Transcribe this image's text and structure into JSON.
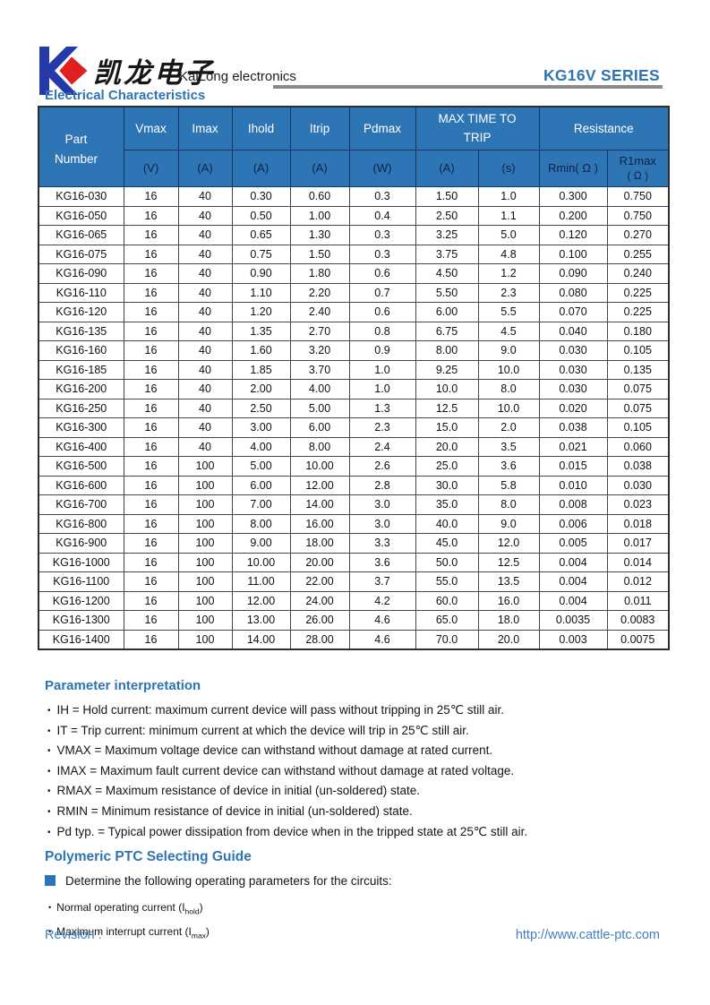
{
  "header": {
    "logo_chinese": "凯龙电子",
    "company": "KaiLong electronics",
    "series": "KG16V SERIES"
  },
  "electrical_section_title": "Electrical Characteristics",
  "table": {
    "header": {
      "part_number": "Part Number",
      "vmax": "Vmax",
      "imax": "Imax",
      "ihold": "Ihold",
      "itrip": "Itrip",
      "pdmax": "Pdmax",
      "max_time_to_trip": "MAX TIME TO TRIP",
      "resistance": "Resistance",
      "units": [
        "(V)",
        "(A)",
        "(A)",
        "(A)",
        "(W)"
      ],
      "trip_units": [
        "(A)",
        "(s)"
      ],
      "rmin": "Rmin( Ω )",
      "r1max": "R1max",
      "r1max_unit": "( Ω )"
    },
    "rows": [
      [
        "KG16-030",
        "16",
        "40",
        "0.30",
        "0.60",
        "0.3",
        "1.50",
        "1.0",
        "0.300",
        "0.750"
      ],
      [
        "KG16-050",
        "16",
        "40",
        "0.50",
        "1.00",
        "0.4",
        "2.50",
        "1.1",
        "0.200",
        "0.750"
      ],
      [
        "KG16-065",
        "16",
        "40",
        "0.65",
        "1.30",
        "0.3",
        "3.25",
        "5.0",
        "0.120",
        "0.270"
      ],
      [
        "KG16-075",
        "16",
        "40",
        "0.75",
        "1.50",
        "0.3",
        "3.75",
        "4.8",
        "0.100",
        "0.255"
      ],
      [
        "KG16-090",
        "16",
        "40",
        "0.90",
        "1.80",
        "0.6",
        "4.50",
        "1.2",
        "0.090",
        "0.240"
      ],
      [
        "KG16-110",
        "16",
        "40",
        "1.10",
        "2.20",
        "0.7",
        "5.50",
        "2.3",
        "0.080",
        "0.225"
      ],
      [
        "KG16-120",
        "16",
        "40",
        "1.20",
        "2.40",
        "0.6",
        "6.00",
        "5.5",
        "0.070",
        "0.225"
      ],
      [
        "KG16-135",
        "16",
        "40",
        "1.35",
        "2.70",
        "0.8",
        "6.75",
        "4.5",
        "0.040",
        "0.180"
      ],
      [
        "KG16-160",
        "16",
        "40",
        "1.60",
        "3.20",
        "0.9",
        "8.00",
        "9.0",
        "0.030",
        "0.105"
      ],
      [
        "KG16-185",
        "16",
        "40",
        "1.85",
        "3.70",
        "1.0",
        "9.25",
        "10.0",
        "0.030",
        "0.135"
      ],
      [
        "KG16-200",
        "16",
        "40",
        "2.00",
        "4.00",
        "1.0",
        "10.0",
        "8.0",
        "0.030",
        "0.075"
      ],
      [
        "KG16-250",
        "16",
        "40",
        "2.50",
        "5.00",
        "1.3",
        "12.5",
        "10.0",
        "0.020",
        "0.075"
      ],
      [
        "KG16-300",
        "16",
        "40",
        "3.00",
        "6.00",
        "2.3",
        "15.0",
        "2.0",
        "0.038",
        "0.105"
      ],
      [
        "KG16-400",
        "16",
        "40",
        "4.00",
        "8.00",
        "2.4",
        "20.0",
        "3.5",
        "0.021",
        "0.060"
      ],
      [
        "KG16-500",
        "16",
        "100",
        "5.00",
        "10.00",
        "2.6",
        "25.0",
        "3.6",
        "0.015",
        "0.038"
      ],
      [
        "KG16-600",
        "16",
        "100",
        "6.00",
        "12.00",
        "2.8",
        "30.0",
        "5.8",
        "0.010",
        "0.030"
      ],
      [
        "KG16-700",
        "16",
        "100",
        "7.00",
        "14.00",
        "3.0",
        "35.0",
        "8.0",
        "0.008",
        "0.023"
      ],
      [
        "KG16-800",
        "16",
        "100",
        "8.00",
        "16.00",
        "3.0",
        "40.0",
        "9.0",
        "0.006",
        "0.018"
      ],
      [
        "KG16-900",
        "16",
        "100",
        "9.00",
        "18.00",
        "3.3",
        "45.0",
        "12.0",
        "0.005",
        "0.017"
      ],
      [
        "KG16-1000",
        "16",
        "100",
        "10.00",
        "20.00",
        "3.6",
        "50.0",
        "12.5",
        "0.004",
        "0.014"
      ],
      [
        "KG16-1100",
        "16",
        "100",
        "11.00",
        "22.00",
        "3.7",
        "55.0",
        "13.5",
        "0.004",
        "0.012"
      ],
      [
        "KG16-1200",
        "16",
        "100",
        "12.00",
        "24.00",
        "4.2",
        "60.0",
        "16.0",
        "0.004",
        "0.011"
      ],
      [
        "KG16-1300",
        "16",
        "100",
        "13.00",
        "26.00",
        "4.6",
        "65.0",
        "18.0",
        "0.0035",
        "0.0083"
      ],
      [
        "KG16-1400",
        "16",
        "100",
        "14.00",
        "28.00",
        "4.6",
        "70.0",
        "20.0",
        "0.003",
        "0.0075"
      ]
    ]
  },
  "parameter_interpretation": {
    "title": "Parameter interpretation",
    "items": [
      "IH = Hold current: maximum current device will pass without tripping in 25℃  still air.",
      "IT = Trip current: minimum current at which the device will trip in 25℃  still air.",
      "VMAX = Maximum voltage device can withstand without damage at rated current.",
      "IMAX = Maximum fault current device can withstand without damage at rated voltage.",
      "RMAX = Maximum resistance of device in initial (un-soldered) state.",
      "RMIN = Minimum resistance of device in initial (un-soldered) state.",
      "Pd typ. = Typical power dissipation from device when in the tripped state at 25℃  still air."
    ]
  },
  "selecting_guide": {
    "title": "Polymeric PTC Selecting Guide",
    "determine": "Determine the following operating parameters for the circuits:",
    "items": [
      {
        "prefix": "Normal operating current (I",
        "sub": "hold",
        "suffix": ")"
      },
      {
        "prefix": "Maximum interrupt current (I",
        "sub": "max",
        "suffix": ")"
      }
    ]
  },
  "footer": {
    "revision": "Revision :",
    "url": "http://www.cattle-ptc.com"
  },
  "colors": {
    "accent_blue": "#2E74B5",
    "table_header_bg": "#2E75B6",
    "table_header_border": "#17375E",
    "units_text": "#0d2140",
    "logo_blue": "#2639A8",
    "logo_red": "#E02020",
    "rule_gray": "#8A8A8A",
    "footer_blue": "#4080C2"
  },
  "icons": {
    "logo": "kailong-k-diamond-logo"
  }
}
